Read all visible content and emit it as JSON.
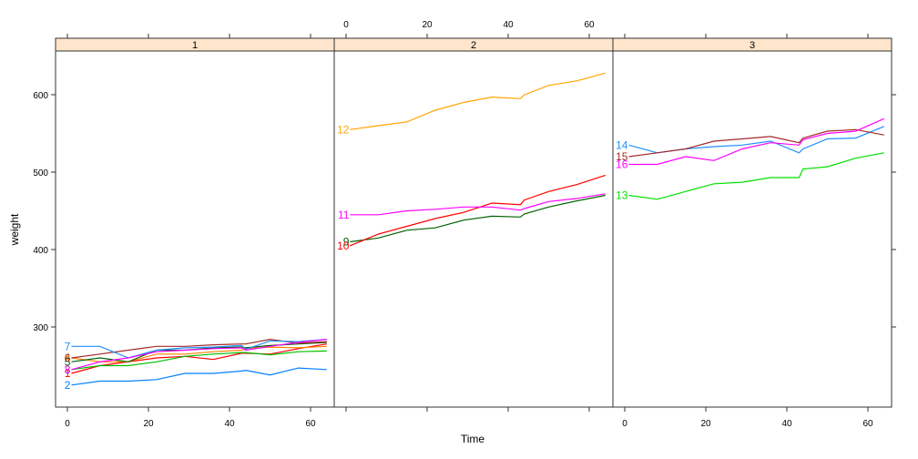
{
  "chart_data": {
    "type": "line",
    "title": "",
    "xlabel": "Time",
    "ylabel": "weight",
    "layout": "lattice 3 panels side by side, conditioned on Diet",
    "xlim": [
      -3,
      67
    ],
    "ylim": [
      196,
      652
    ],
    "x_ticks": [
      0,
      20,
      40,
      60
    ],
    "y_ticks": [
      300,
      400,
      500,
      600
    ],
    "strip_color": "#ffe5cc",
    "x": [
      1,
      8,
      15,
      22,
      29,
      36,
      43,
      44,
      50,
      57,
      64
    ],
    "panels": [
      {
        "strip": "1",
        "series": [
          {
            "name": "1",
            "color": "#ff0000",
            "values": [
              240,
              250,
              255,
              260,
              262,
              258,
              266,
              266,
              265,
              272,
              278
            ]
          },
          {
            "name": "2",
            "color": "#0080ff",
            "values": [
              225,
              230,
              230,
              232,
              240,
              240,
              243,
              244,
              238,
              247,
              245
            ]
          },
          {
            "name": "3",
            "color": "#00c000",
            "values": [
              245,
              250,
              250,
              255,
              262,
              265,
              267,
              267,
              264,
              268,
              269
            ]
          },
          {
            "name": "4",
            "color": "#ff8000",
            "values": [
              260,
              255,
              255,
              265,
              265,
              268,
              270,
              272,
              274,
              273,
              275
            ]
          },
          {
            "name": "5",
            "color": "#006400",
            "values": [
              255,
              260,
              255,
              270,
              270,
              273,
              274,
              273,
              276,
              278,
              280
            ]
          },
          {
            "name": "6",
            "color": "#a52a2a",
            "values": [
              260,
              265,
              270,
              275,
              275,
              277,
              278,
              278,
              284,
              279,
              281
            ]
          },
          {
            "name": "7",
            "color": "#1e90ff",
            "values": [
              275,
              275,
              260,
              270,
              273,
              274,
              276,
              271,
              282,
              281,
              284
            ]
          },
          {
            "name": "8",
            "color": "#ff00ff",
            "values": [
              245,
              255,
              260,
              268,
              270,
              272,
              273,
              270,
              275,
              280,
              284
            ]
          }
        ]
      },
      {
        "strip": "2",
        "series": [
          {
            "name": "9",
            "color": "#006400",
            "values": [
              410,
              415,
              425,
              428,
              438,
              443,
              442,
              446,
              455,
              463,
              470
            ]
          },
          {
            "name": "10",
            "color": "#ff0000",
            "values": [
              405,
              420,
              430,
              440,
              448,
              460,
              458,
              464,
              475,
              484,
              496
            ]
          },
          {
            "name": "11",
            "color": "#ff00ff",
            "values": [
              445,
              445,
              450,
              452,
              455,
              455,
              451,
              453,
              462,
              466,
              472
            ]
          },
          {
            "name": "12",
            "color": "#ffa500",
            "values": [
              555,
              560,
              565,
              580,
              590,
              597,
              595,
              600,
              612,
              618,
              628
            ]
          }
        ]
      },
      {
        "strip": "3",
        "series": [
          {
            "name": "13",
            "color": "#00e000",
            "values": [
              470,
              465,
              475,
              485,
              487,
              493,
              493,
              504,
              507,
              518,
              525
            ]
          },
          {
            "name": "14",
            "color": "#1e90ff",
            "values": [
              535,
              525,
              530,
              533,
              535,
              540,
              525,
              530,
              543,
              544,
              559
            ]
          },
          {
            "name": "15",
            "color": "#a52a2a",
            "values": [
              520,
              525,
              530,
              540,
              543,
              546,
              538,
              544,
              553,
              555,
              548
            ]
          },
          {
            "name": "16",
            "color": "#ff00ff",
            "values": [
              510,
              510,
              520,
              515,
              530,
              538,
              535,
              542,
              550,
              553,
              569
            ]
          }
        ]
      }
    ]
  },
  "axes": {
    "xlabel": "Time",
    "ylabel": "weight",
    "x_tick_labels": [
      "0",
      "20",
      "40",
      "60"
    ],
    "y_tick_labels": [
      "300",
      "400",
      "500",
      "600"
    ]
  }
}
